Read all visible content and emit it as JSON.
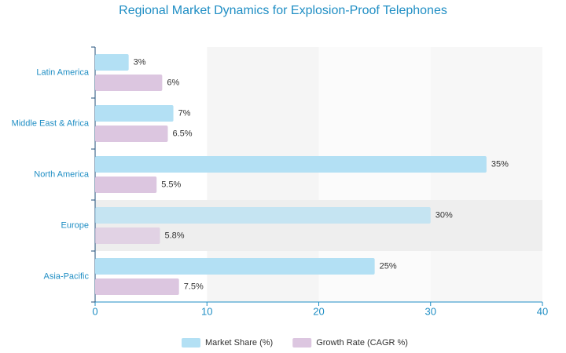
{
  "chart_data": {
    "type": "hbar",
    "title": "Regional Market Dynamics for Explosion-Proof Telephones",
    "categories": [
      "Latin America",
      "Middle East & Africa",
      "North America",
      "Europe",
      "Asia-Pacific"
    ],
    "series": [
      {
        "name": "Market Share (%)",
        "color": "#b3e0f4",
        "values": [
          3,
          7,
          35,
          30,
          25
        ],
        "value_labels": [
          "3%",
          "7%",
          "35%",
          "30%",
          "25%"
        ]
      },
      {
        "name": "Growth Rate (CAGR %)",
        "color": "#dcc6e0",
        "values": [
          6,
          6.5,
          5.5,
          5.8,
          7.5
        ],
        "value_labels": [
          "6%",
          "6.5%",
          "5.5%",
          "5.8%",
          "7.5%"
        ]
      }
    ],
    "xlim": [
      0,
      40
    ],
    "xticks": [
      0,
      10,
      20,
      30,
      40
    ]
  }
}
